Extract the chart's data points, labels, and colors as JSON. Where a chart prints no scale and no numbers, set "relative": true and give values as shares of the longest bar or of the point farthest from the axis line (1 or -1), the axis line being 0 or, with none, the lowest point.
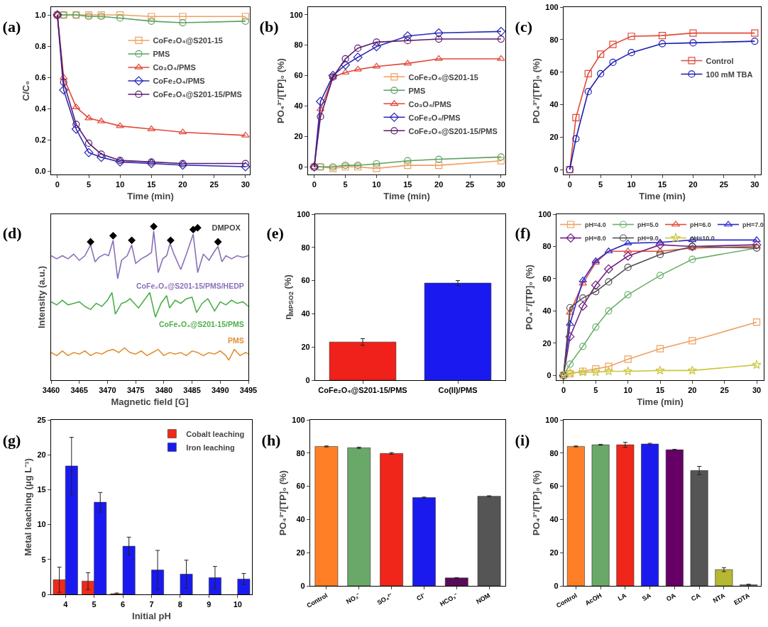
{
  "chart_data": [
    {
      "type": "line",
      "title": "(a)",
      "xlabel": "Time (min)",
      "ylabel": "C/C₀",
      "x": [
        0,
        1,
        3,
        5,
        7,
        10,
        15,
        20,
        30
      ],
      "xlim": [
        -1,
        30.7
      ],
      "xticks": [
        0,
        5,
        10,
        15,
        20,
        25,
        30
      ],
      "ylim": [
        -0.02,
        1.05
      ],
      "yticks": [
        {
          "value": 0,
          "label": "0.0"
        },
        0.2,
        0.4,
        0.6,
        0.8,
        {
          "value": 1,
          "label": "1.0"
        }
      ],
      "legend": "right",
      "series": [
        {
          "name": "CoFe₂O₄@S201-15",
          "color": "#f0a060",
          "marker": "square",
          "values": [
            1.0,
            1.0,
            1.0,
            1.0,
            1.0,
            1.0,
            0.99,
            0.99,
            0.99
          ]
        },
        {
          "name": "PMS",
          "color": "#5aa060",
          "marker": "circle",
          "values": [
            1.0,
            1.0,
            1.0,
            0.99,
            0.99,
            0.98,
            0.96,
            0.95,
            0.96
          ]
        },
        {
          "name": "Co₃O₄/PMS",
          "color": "#e04a3a",
          "marker": "triangle",
          "values": [
            1.0,
            0.6,
            0.41,
            0.34,
            0.32,
            0.29,
            0.27,
            0.25,
            0.23
          ]
        },
        {
          "name": "CoFe₂O₄/PMS",
          "color": "#2a2ab8",
          "marker": "diamond",
          "values": [
            1.0,
            0.52,
            0.27,
            0.12,
            0.09,
            0.06,
            0.05,
            0.04,
            0.03
          ]
        },
        {
          "name": "CoFe₂O₄@S201-15/PMS",
          "color": "#5a1a6a",
          "marker": "circle",
          "values": [
            1.0,
            0.57,
            0.3,
            0.18,
            0.11,
            0.07,
            0.06,
            0.05,
            0.05
          ]
        }
      ]
    },
    {
      "type": "line",
      "title": "(b)",
      "xlabel": "Time (min)",
      "ylabel": "PO₄³⁻/[TP]₀ (%)",
      "x": [
        0,
        1,
        3,
        5,
        7,
        10,
        15,
        20,
        30
      ],
      "xlim": [
        -1,
        30.7
      ],
      "xticks": [
        0,
        5,
        10,
        15,
        20,
        25,
        30
      ],
      "ylim": [
        -5,
        105
      ],
      "yticks": [
        0,
        20,
        40,
        60,
        80,
        100
      ],
      "legend": "bottom right",
      "series": [
        {
          "name": "CoFe₂O₄@S201-15",
          "color": "#f0a060",
          "marker": "square",
          "values": [
            0,
            0,
            -1,
            0,
            0,
            -1,
            1,
            1,
            4
          ]
        },
        {
          "name": "PMS",
          "color": "#5aa060",
          "marker": "circle",
          "values": [
            0,
            0,
            0,
            1,
            1,
            2,
            4,
            5,
            6.5
          ]
        },
        {
          "name": "Co₃O₄/PMS",
          "color": "#e04a3a",
          "marker": "triangle",
          "values": [
            0,
            38,
            59,
            62,
            64,
            66,
            68,
            71,
            71
          ]
        },
        {
          "name": "CoFe₂O₄/PMS",
          "color": "#2a2ab8",
          "marker": "diamond",
          "values": [
            0,
            43,
            60,
            67,
            72,
            79,
            86,
            88,
            89
          ]
        },
        {
          "name": "CoFe₂O₄@S201-15/PMS",
          "color": "#5a1a6a",
          "marker": "circle",
          "values": [
            0,
            33,
            59,
            71,
            78,
            82,
            83,
            84,
            84
          ]
        }
      ]
    },
    {
      "type": "line",
      "title": "(c)",
      "xlabel": "Time (min)",
      "ylabel": "PO₄³⁻/[TP]₀ (%)",
      "x": [
        0,
        1,
        3,
        5,
        7,
        10,
        15,
        20,
        30
      ],
      "xlim": [
        -1,
        31
      ],
      "xticks": [
        0,
        5,
        10,
        15,
        20,
        25,
        30
      ],
      "ylim": [
        -3,
        100
      ],
      "yticks": [
        0,
        20,
        40,
        60,
        80,
        100
      ],
      "legend": "right",
      "series": [
        {
          "name": "Control",
          "color": "#e04a3a",
          "marker": "square",
          "values": [
            0,
            32,
            59,
            71,
            77,
            82,
            82.5,
            84,
            84
          ]
        },
        {
          "name": "100 mM TBA",
          "color": "#1a1ab0",
          "marker": "circle",
          "values": [
            0,
            19,
            48,
            59,
            66,
            72,
            77.5,
            78,
            79
          ]
        }
      ]
    },
    {
      "type": "line",
      "title": "(d)",
      "xlabel": "Magnetic field [G]",
      "ylabel": "Intensity (a.u.)",
      "relative": true,
      "tick_labels": "x",
      "xlim": [
        3460,
        3495
      ],
      "xticks": [
        3460,
        3465,
        3470,
        3475,
        3480,
        3485,
        3490,
        3495
      ],
      "legend": "top right",
      "series": [
        {
          "name": "CoFe₂O₄@S201-15/PMS/HEDP",
          "color": "#8a70b8",
          "marker": "none",
          "x": [
            3460,
            3461,
            3462,
            3463,
            3464,
            3465,
            3466,
            3467,
            3467.8,
            3468.5,
            3469.5,
            3470.2,
            3471,
            3471.8,
            3472.5,
            3473.5,
            3474.3,
            3475,
            3476,
            3477,
            3477.8,
            3478.2,
            3479,
            3479.8,
            3480.5,
            3481.1,
            3481.8,
            3483,
            3484,
            3485.2,
            3486,
            3487,
            3488,
            3489,
            3489.6,
            3490.3,
            3491,
            3492,
            3493,
            3494,
            3495
          ],
          "values": [
            0.81,
            0.79,
            0.81,
            0.79,
            0.82,
            0.78,
            0.81,
            0.88,
            0.77,
            0.8,
            0.82,
            0.81,
            0.91,
            0.66,
            0.78,
            0.81,
            0.88,
            0.76,
            0.79,
            0.81,
            0.83,
            0.97,
            0.7,
            0.79,
            0.81,
            0.89,
            0.82,
            0.72,
            0.82,
            0.95,
            0.7,
            0.82,
            0.78,
            0.84,
            0.87,
            0.77,
            0.81,
            0.79,
            0.81,
            0.8,
            0.81
          ]
        },
        {
          "name": "CoFe₂O₄@S201-15/PMS",
          "color": "#4cae4c",
          "marker": "none",
          "x": [
            3460,
            3461,
            3462,
            3463,
            3464,
            3465,
            3466,
            3467,
            3468,
            3469,
            3470,
            3470.8,
            3471.4,
            3472.5,
            3473.3,
            3474,
            3475,
            3475.5,
            3476.5,
            3477.5,
            3478.5,
            3479.5,
            3480.5,
            3481,
            3482,
            3483,
            3484,
            3485,
            3485.8,
            3486.8,
            3487.8,
            3489,
            3490,
            3491,
            3492,
            3493,
            3494,
            3495
          ],
          "values": [
            0.51,
            0.49,
            0.52,
            0.49,
            0.5,
            0.51,
            0.48,
            0.46,
            0.5,
            0.48,
            0.52,
            0.57,
            0.43,
            0.5,
            0.51,
            0.53,
            0.49,
            0.47,
            0.52,
            0.57,
            0.41,
            0.5,
            0.55,
            0.47,
            0.52,
            0.5,
            0.53,
            0.54,
            0.44,
            0.5,
            0.53,
            0.45,
            0.51,
            0.49,
            0.52,
            0.5,
            0.51,
            0.48
          ]
        },
        {
          "name": "PMS",
          "color": "#e09030",
          "marker": "none",
          "x": [
            3460,
            3461,
            3462,
            3463,
            3464,
            3465,
            3466,
            3467,
            3468,
            3469,
            3470,
            3471,
            3472,
            3473,
            3474,
            3475,
            3476,
            3477,
            3478,
            3479,
            3480,
            3481,
            3482,
            3483,
            3484,
            3485,
            3486,
            3487,
            3488,
            3489,
            3490,
            3491,
            3491.5,
            3492.5,
            3493.5,
            3494.5,
            3495
          ],
          "values": [
            0.18,
            0.16,
            0.19,
            0.16,
            0.18,
            0.17,
            0.19,
            0.16,
            0.18,
            0.17,
            0.19,
            0.2,
            0.18,
            0.21,
            0.18,
            0.17,
            0.19,
            0.16,
            0.18,
            0.2,
            0.16,
            0.18,
            0.17,
            0.18,
            0.16,
            0.19,
            0.18,
            0.16,
            0.18,
            0.17,
            0.19,
            0.16,
            0.13,
            0.2,
            0.16,
            0.18,
            0.17
          ]
        },
        {
          "type": "scatter",
          "name": "DMPOX",
          "color": "#000000",
          "marker": "diamond",
          "x": [
            3467,
            3471,
            3474.3,
            3478.2,
            3481.2,
            3485.2,
            3489.6
          ],
          "values": [
            0.9,
            0.94,
            0.91,
            1.0,
            0.91,
            0.98,
            0.9
          ]
        }
      ]
    },
    {
      "type": "bar",
      "title": "(e)",
      "ylabel": "η$_{MPSO2}$ (%)",
      "categories": [
        "CoFe₂O₄@S201-15/PMS",
        "Co(II)/PMS"
      ],
      "values": [
        23,
        58.5
      ],
      "errors": [
        2,
        1.5
      ],
      "colors": [
        "#f0201a",
        "#1a1af0"
      ],
      "ylim": [
        0,
        100
      ],
      "yticks": [
        0,
        20,
        40,
        60,
        80,
        100
      ]
    },
    {
      "type": "line",
      "title": "(f)",
      "xlabel": "Time (min)",
      "ylabel": "PO₄³⁻/[TP]₀ (%)",
      "x": [
        0,
        1,
        3,
        5,
        7,
        10,
        15,
        20,
        30
      ],
      "xlim": [
        -1.1,
        31.1
      ],
      "xticks": [
        0,
        5,
        10,
        15,
        20,
        25,
        30
      ],
      "ylim": [
        -3,
        100
      ],
      "yticks": [
        0,
        20,
        40,
        60,
        80,
        100
      ],
      "legend": "top",
      "series": [
        {
          "name": "pH=4.0",
          "color": "#f0a060",
          "marker": "square",
          "values": [
            0,
            1,
            2.5,
            4,
            5.5,
            10,
            16.5,
            21.5,
            33
          ]
        },
        {
          "name": "pH=5.0",
          "color": "#6ab06a",
          "marker": "circle",
          "values": [
            0,
            7,
            18,
            30,
            40,
            50,
            62,
            72,
            79
          ]
        },
        {
          "name": "pH=6.0",
          "color": "#e04a3a",
          "marker": "triangle",
          "values": [
            0,
            39,
            57,
            70,
            77,
            77,
            77,
            79,
            80
          ]
        },
        {
          "name": "pH=7.0",
          "color": "#2a2ad0",
          "marker": "triangle",
          "values": [
            0,
            32,
            59,
            71,
            77,
            82,
            82.5,
            84,
            84
          ]
        },
        {
          "name": "pH=8.0",
          "color": "#702080",
          "marker": "diamond",
          "values": [
            0,
            24,
            43,
            56,
            66,
            74,
            81,
            80,
            81
          ]
        },
        {
          "name": "pH=9.0",
          "color": "#505050",
          "marker": "circle",
          "values": [
            0,
            42,
            48,
            52,
            58,
            67,
            75,
            80,
            79
          ]
        },
        {
          "name": "pH=10.0",
          "color": "#c8c840",
          "marker": "star",
          "values": [
            0,
            1.5,
            2,
            2,
            2.5,
            2.5,
            3,
            3,
            6.5
          ]
        }
      ]
    },
    {
      "type": "bar",
      "title": "(g)",
      "xlabel": "Initial pH",
      "ylabel": "Metal leaching (μg L⁻¹)",
      "categories": [
        "4",
        "5",
        "6",
        "7",
        "8",
        "9",
        "10"
      ],
      "ylim": [
        0,
        25
      ],
      "yticks": [
        0,
        5,
        10,
        15,
        20,
        25
      ],
      "legend": "top right",
      "series": [
        {
          "name": "Cobalt leaching",
          "color": "#f02a1a",
          "values": [
            2.1,
            1.9,
            0.1,
            null,
            null,
            null,
            null
          ],
          "errors": [
            1.8,
            1.2,
            0.1,
            null,
            null,
            null,
            null
          ]
        },
        {
          "name": "Iron leaching",
          "color": "#1a1af0",
          "values": [
            18.4,
            13.2,
            6.9,
            3.5,
            2.9,
            2.4,
            2.2
          ],
          "errors": [
            4.1,
            1.4,
            1.3,
            2.8,
            2.0,
            1.6,
            0.8
          ]
        }
      ]
    },
    {
      "type": "bar",
      "title": "(h)",
      "ylabel": "PO₄³⁻/[TP]₀ (%)",
      "categories": [
        "Control",
        "NO₃⁻",
        "SO₄²⁻",
        "Cl⁻",
        "HCO₃⁻",
        "NOM"
      ],
      "values": [
        84,
        83.2,
        79.8,
        53.2,
        4.8,
        54
      ],
      "errors": [
        0.3,
        0.4,
        0.5,
        0.3,
        0.2,
        0.3
      ],
      "colors": [
        "#ff7f27",
        "#6aa86a",
        "#f0261a",
        "#1a1aee",
        "#5a0a5a",
        "#555555"
      ],
      "ylim": [
        0,
        100
      ],
      "yticks": [
        0,
        20,
        40,
        60,
        80,
        100
      ]
    },
    {
      "type": "bar",
      "title": "(i)",
      "ylabel": "PO₄³⁻/[TP]₀ (%)",
      "categories": [
        "Control",
        "AcOH",
        "LA",
        "SA",
        "OA",
        "CA",
        "NTA",
        "EDTA"
      ],
      "values": [
        84,
        85,
        85,
        85.5,
        82,
        69.5,
        9.8,
        0.7
      ],
      "errors": [
        0.3,
        0.3,
        1.5,
        0.4,
        0.3,
        2.5,
        1.2,
        0.3
      ],
      "colors": [
        "#ff7f27",
        "#6aa86a",
        "#f0261a",
        "#1a1aee",
        "#660066",
        "#555555",
        "#b5b832",
        "#777777"
      ],
      "ylim": [
        0,
        100
      ],
      "yticks": [
        0,
        20,
        40,
        60,
        80,
        100
      ]
    }
  ]
}
